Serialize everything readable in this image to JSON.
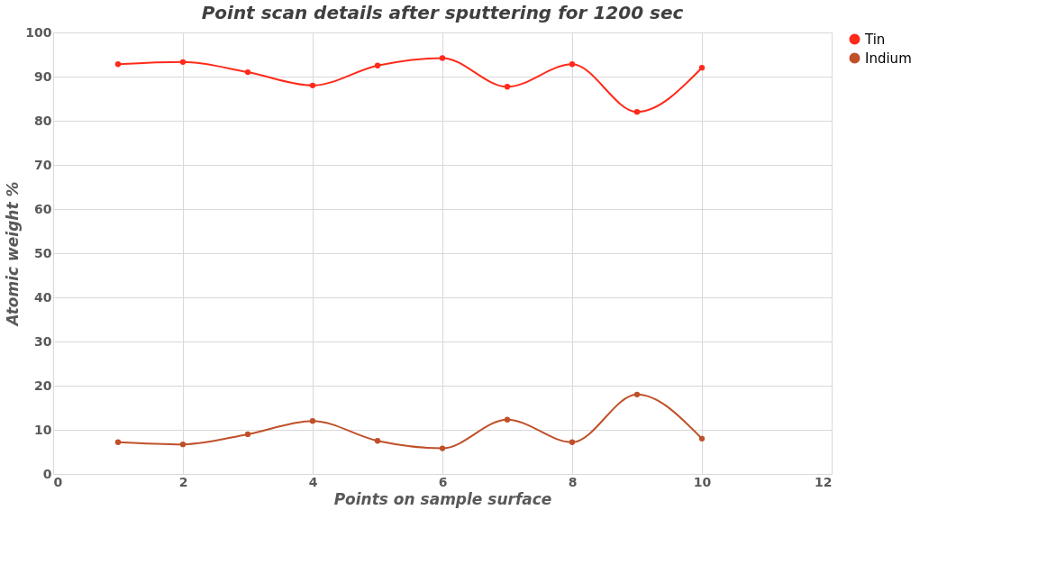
{
  "chart_data": {
    "type": "line",
    "title": "Point scan details after sputtering for 1200 sec",
    "xlabel": "Points on sample surface",
    "ylabel": "Atomic weight %",
    "x": [
      1,
      2,
      3,
      4,
      5,
      6,
      7,
      8,
      9,
      10
    ],
    "series": [
      {
        "name": "Tin",
        "color": "#ff2a1a",
        "values": [
          92.8,
          93.3,
          91,
          88,
          92.5,
          94.2,
          87.7,
          92.8,
          82,
          92
        ]
      },
      {
        "name": "Indium",
        "color": "#c0502a",
        "values": [
          7.2,
          6.7,
          9,
          12,
          7.5,
          5.8,
          12.3,
          7.2,
          18,
          8
        ]
      }
    ],
    "xlim": [
      0,
      12
    ],
    "xticks": [
      0,
      2,
      4,
      6,
      8,
      10,
      12
    ],
    "ylim": [
      0,
      100
    ],
    "yticks": [
      0,
      10,
      20,
      30,
      40,
      50,
      60,
      70,
      80,
      90,
      100
    ],
    "grid": true,
    "legend": "right",
    "marker": "circle",
    "line_style": "solid"
  }
}
